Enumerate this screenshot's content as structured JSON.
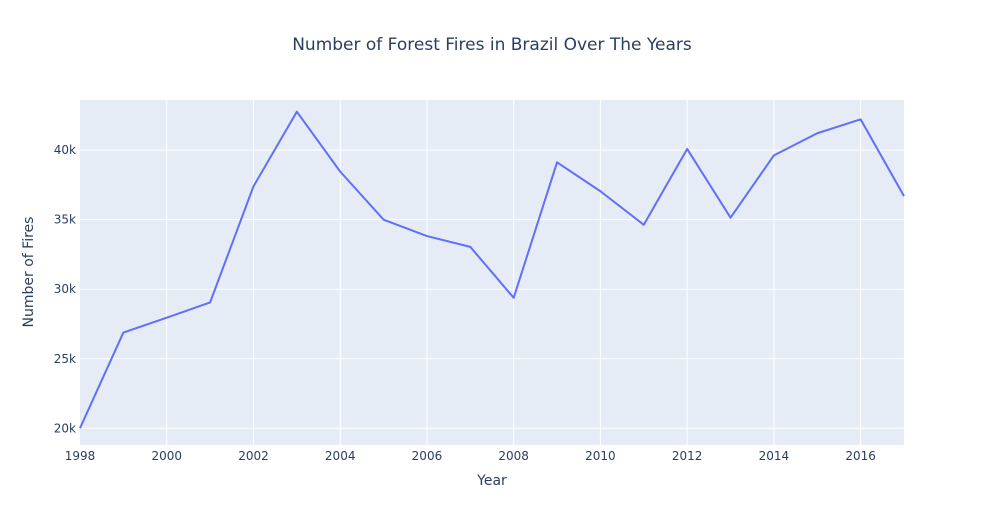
{
  "chart_data": {
    "type": "line",
    "title": "Number of Forest Fires in Brazil Over The Years",
    "xlabel": "Year",
    "ylabel": "Number of Fires",
    "xlim": [
      1998,
      2017
    ],
    "ylim": [
      18800,
      43600
    ],
    "grid": true,
    "x_ticks": [
      1998,
      2000,
      2002,
      2004,
      2006,
      2008,
      2010,
      2012,
      2014,
      2016
    ],
    "x_tick_labels": [
      "1998",
      "2000",
      "2002",
      "2004",
      "2006",
      "2008",
      "2010",
      "2012",
      "2014",
      "2016"
    ],
    "y_ticks": [
      20000,
      25000,
      30000,
      35000,
      40000
    ],
    "y_tick_labels": [
      "20k",
      "25k",
      "30k",
      "35k",
      "40k"
    ],
    "series": [
      {
        "x": [
          1998,
          1999,
          2000,
          2001,
          2002,
          2003,
          2004,
          2005,
          2006,
          2007,
          2008,
          2009,
          2010,
          2011,
          2012,
          2013,
          2014,
          2015,
          2016,
          2017
        ],
        "values": [
          20010,
          26880,
          27950,
          29050,
          37390,
          42760,
          38450,
          35000,
          33820,
          33040,
          29380,
          39120,
          37040,
          34630,
          40080,
          35140,
          39620,
          41210,
          42210,
          36690
        ],
        "color": "#636efa"
      }
    ],
    "colors": {
      "plot_background": "#e5ecf6",
      "grid": "#ffffff",
      "text": "#2a3f5f",
      "line": "#636efa"
    }
  }
}
